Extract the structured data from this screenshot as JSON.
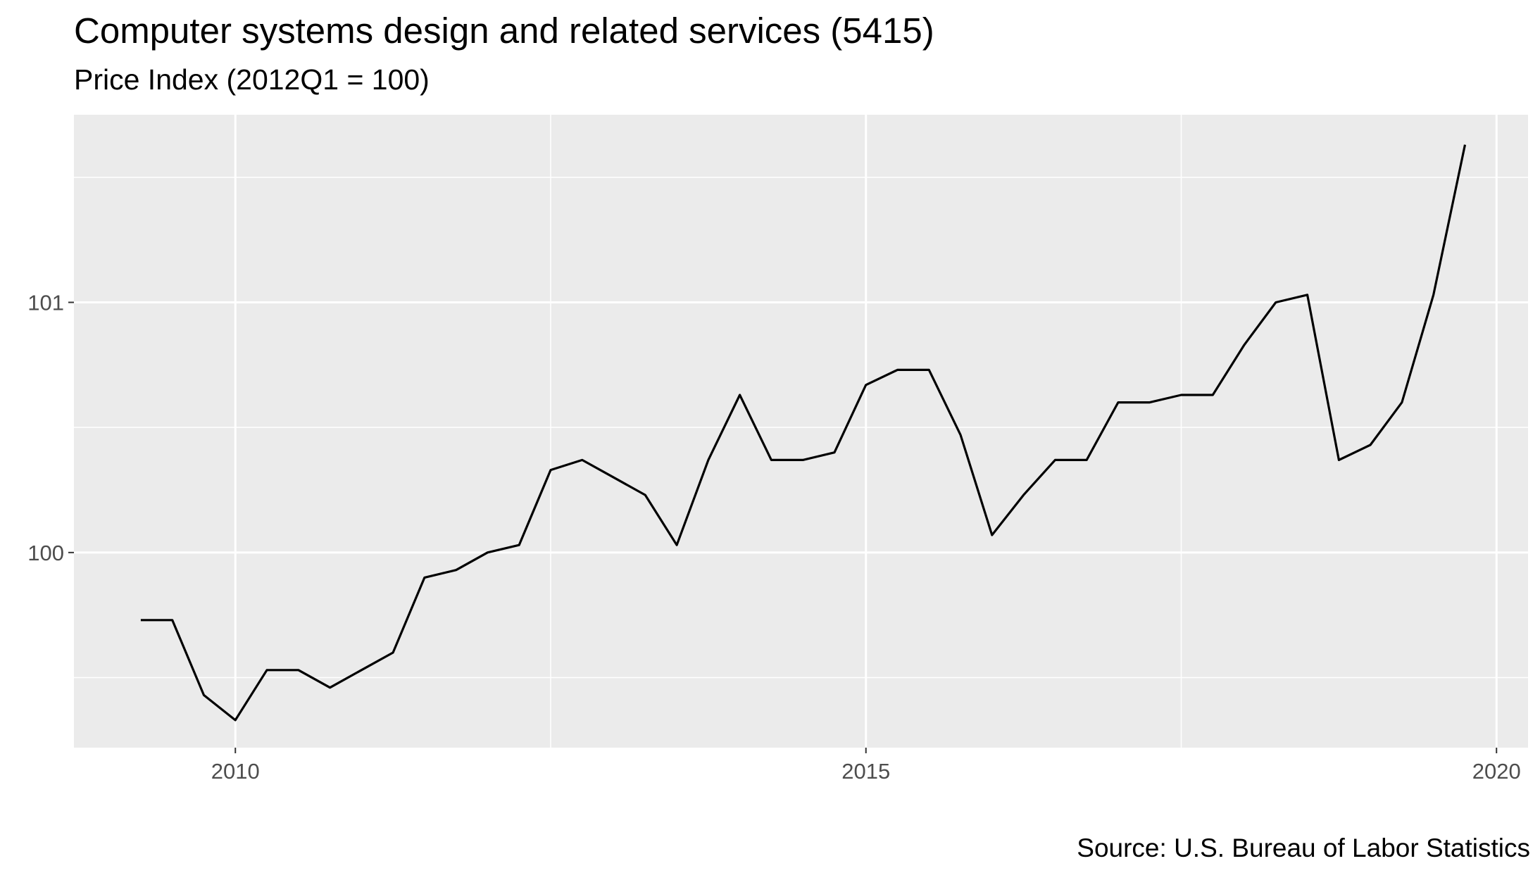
{
  "chart_data": {
    "type": "line",
    "title": "Computer systems design and related services (5415)",
    "subtitle": "Price Index (2012Q1 = 100)",
    "caption": "Source: U.S. Bureau of Labor Statistics",
    "xlabel": "",
    "ylabel": "",
    "xlim": [
      2008.72,
      2020.25
    ],
    "ylim": [
      99.22,
      101.75
    ],
    "x_ticks": [
      2010,
      2015,
      2020
    ],
    "x_tick_labels": [
      "2010",
      "2015",
      "2020"
    ],
    "y_ticks": [
      100,
      101
    ],
    "y_tick_labels": [
      "100",
      "101"
    ],
    "grid": true,
    "background": "#ebebeb",
    "line_color": "#000000",
    "series": [
      {
        "x": [
          2009.25,
          2009.5,
          2009.75,
          2010.0,
          2010.25,
          2010.5,
          2010.75,
          2011.0,
          2011.25,
          2011.5,
          2011.75,
          2012.0,
          2012.25,
          2012.5,
          2012.75,
          2013.0,
          2013.25,
          2013.5,
          2013.75,
          2014.0,
          2014.25,
          2014.5,
          2014.75,
          2015.0,
          2015.25,
          2015.5,
          2015.75,
          2016.0,
          2016.25,
          2016.5,
          2016.75,
          2017.0,
          2017.25,
          2017.5,
          2017.75,
          2018.0,
          2018.25,
          2018.5,
          2018.75,
          2019.0,
          2019.25,
          2019.5,
          2019.75
        ],
        "values": [
          99.73,
          99.73,
          99.43,
          99.33,
          99.53,
          99.53,
          99.46,
          99.53,
          99.6,
          99.9,
          99.93,
          100.0,
          100.03,
          100.33,
          100.37,
          100.3,
          100.23,
          100.03,
          100.37,
          100.63,
          100.37,
          100.37,
          100.4,
          100.67,
          100.73,
          100.73,
          100.47,
          100.07,
          100.23,
          100.37,
          100.37,
          100.6,
          100.6,
          100.63,
          100.63,
          100.83,
          101.0,
          101.03,
          100.37,
          100.43,
          100.6,
          101.03,
          101.63
        ]
      }
    ]
  }
}
